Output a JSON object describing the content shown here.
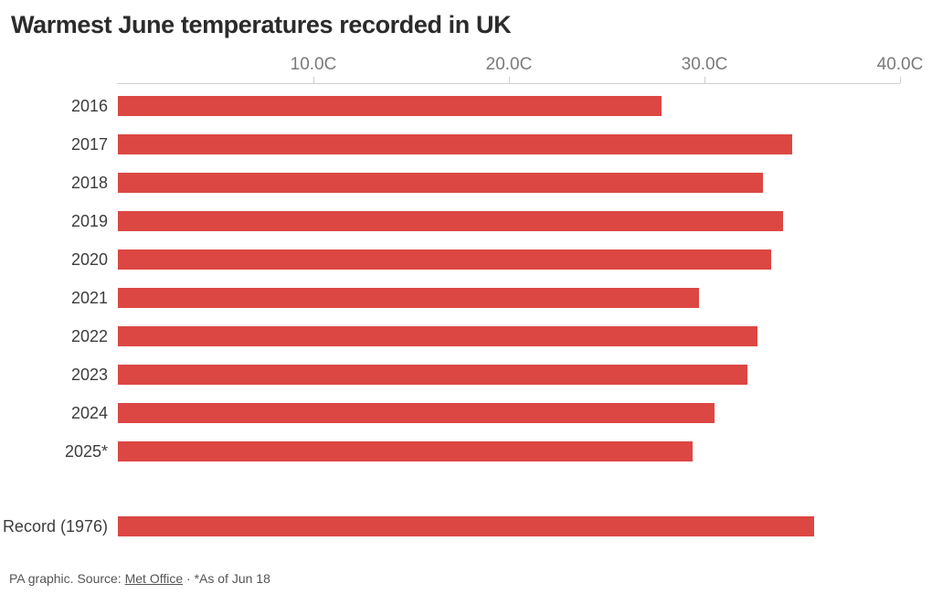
{
  "title": "Warmest June temperatures recorded in UK",
  "footer": {
    "prefix": "PA graphic. Source: ",
    "source_link": "Met Office",
    "suffix": " · *As of Jun 18"
  },
  "colors": {
    "bar": "#dc4743",
    "axis_line": "#cfcfcf",
    "tick_label": "#7a7a7a",
    "category_label": "#3d3d3d",
    "title": "#2b2b2b",
    "footer_text": "#555555",
    "background": "#ffffff"
  },
  "chart_data": {
    "type": "bar",
    "orientation": "horizontal",
    "title": "Warmest June temperatures recorded in UK",
    "categories": [
      "2016",
      "2017",
      "2018",
      "2019",
      "2020",
      "2021",
      "2022",
      "2023",
      "2024",
      "2025*",
      "Record (1976)"
    ],
    "values": [
      27.8,
      34.5,
      33.0,
      34.0,
      33.4,
      29.7,
      32.7,
      32.2,
      30.5,
      29.4,
      35.6
    ],
    "unit": "C",
    "xlim": [
      0,
      40
    ],
    "x_ticks": [
      {
        "value": 10,
        "label": "10.0C"
      },
      {
        "value": 20,
        "label": "20.0C"
      },
      {
        "value": 30,
        "label": "30.0C"
      },
      {
        "value": 40,
        "label": "40.0C"
      }
    ],
    "xlabel": "",
    "ylabel": "",
    "grid": false,
    "legend": null,
    "separated_last_row": true
  }
}
